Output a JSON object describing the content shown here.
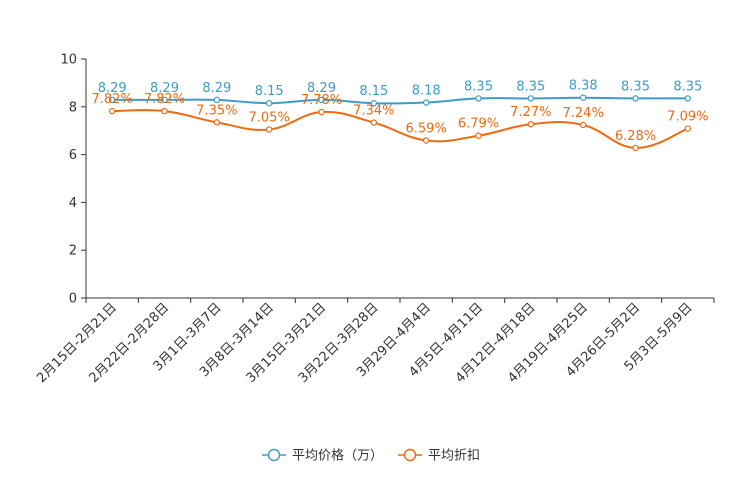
{
  "chart_data": {
    "type": "line",
    "title": "",
    "xlabel": "",
    "ylabel": "",
    "ylim": [
      0,
      10
    ],
    "yticks": [
      "0",
      "2",
      "4",
      "6",
      "8",
      "10"
    ],
    "categories": [
      "2月15日-2月21日",
      "2月22日-2月28日",
      "3月1日-3月7日",
      "3月8日-3月14日",
      "3月15日-3月21日",
      "3月22日-3月28日",
      "3月29日-4月4日",
      "4月5日-4月11日",
      "4月12日-4月18日",
      "4月19日-4月25日",
      "4月26日-5月2日",
      "5月3日-5月9日"
    ],
    "series": [
      {
        "name": "平均价格（万）",
        "color": "#3d9cc8",
        "values": [
          8.29,
          8.29,
          8.29,
          8.15,
          8.29,
          8.15,
          8.18,
          8.35,
          8.35,
          8.38,
          8.35,
          8.35
        ],
        "labels": [
          "8.29",
          "8.29",
          "8.29",
          "8.15",
          "8.29",
          "8.15",
          "8.18",
          "8.35",
          "8.35",
          "8.38",
          "8.35",
          "8.35"
        ]
      },
      {
        "name": "平均折扣",
        "color": "#ee6a12",
        "values": [
          7.82,
          7.82,
          7.35,
          7.05,
          7.78,
          7.34,
          6.59,
          6.79,
          7.27,
          7.24,
          6.28,
          7.09
        ],
        "labels": [
          "7.82%",
          "7.82%",
          "7.35%",
          "7.05%",
          "7.78%",
          "7.34%",
          "6.59%",
          "6.79%",
          "7.27%",
          "7.24%",
          "6.28%",
          "7.09%"
        ]
      }
    ],
    "legend_position": "bottom-center",
    "grid": false
  }
}
